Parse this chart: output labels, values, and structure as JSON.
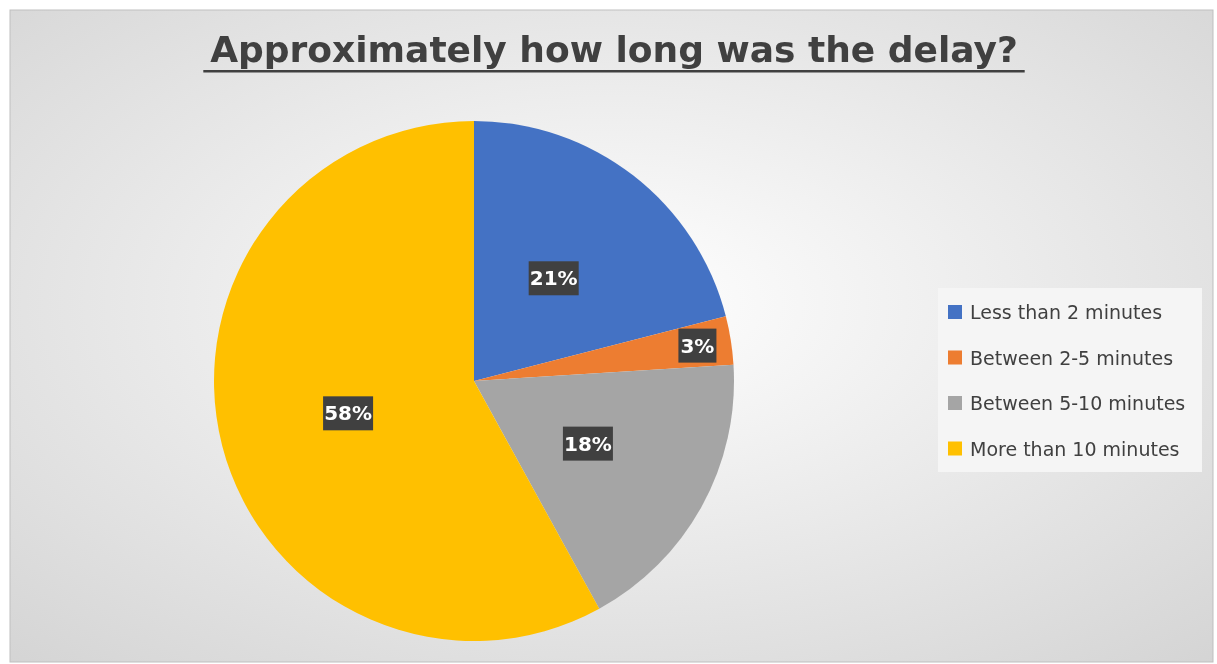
{
  "chart_data": {
    "type": "pie",
    "title": "Approximately how long was the delay?",
    "categories": [
      "Less than 2 minutes",
      "Between 2-5 minutes",
      "Between 5-10 minutes",
      "More than 10 minutes"
    ],
    "values": [
      21,
      3,
      18,
      58
    ],
    "colors": [
      "#4472c4",
      "#ed7d31",
      "#a5a5a5",
      "#ffc000"
    ],
    "value_labels": [
      "21%",
      "3%",
      "18%",
      "58%"
    ],
    "legend": "right"
  }
}
